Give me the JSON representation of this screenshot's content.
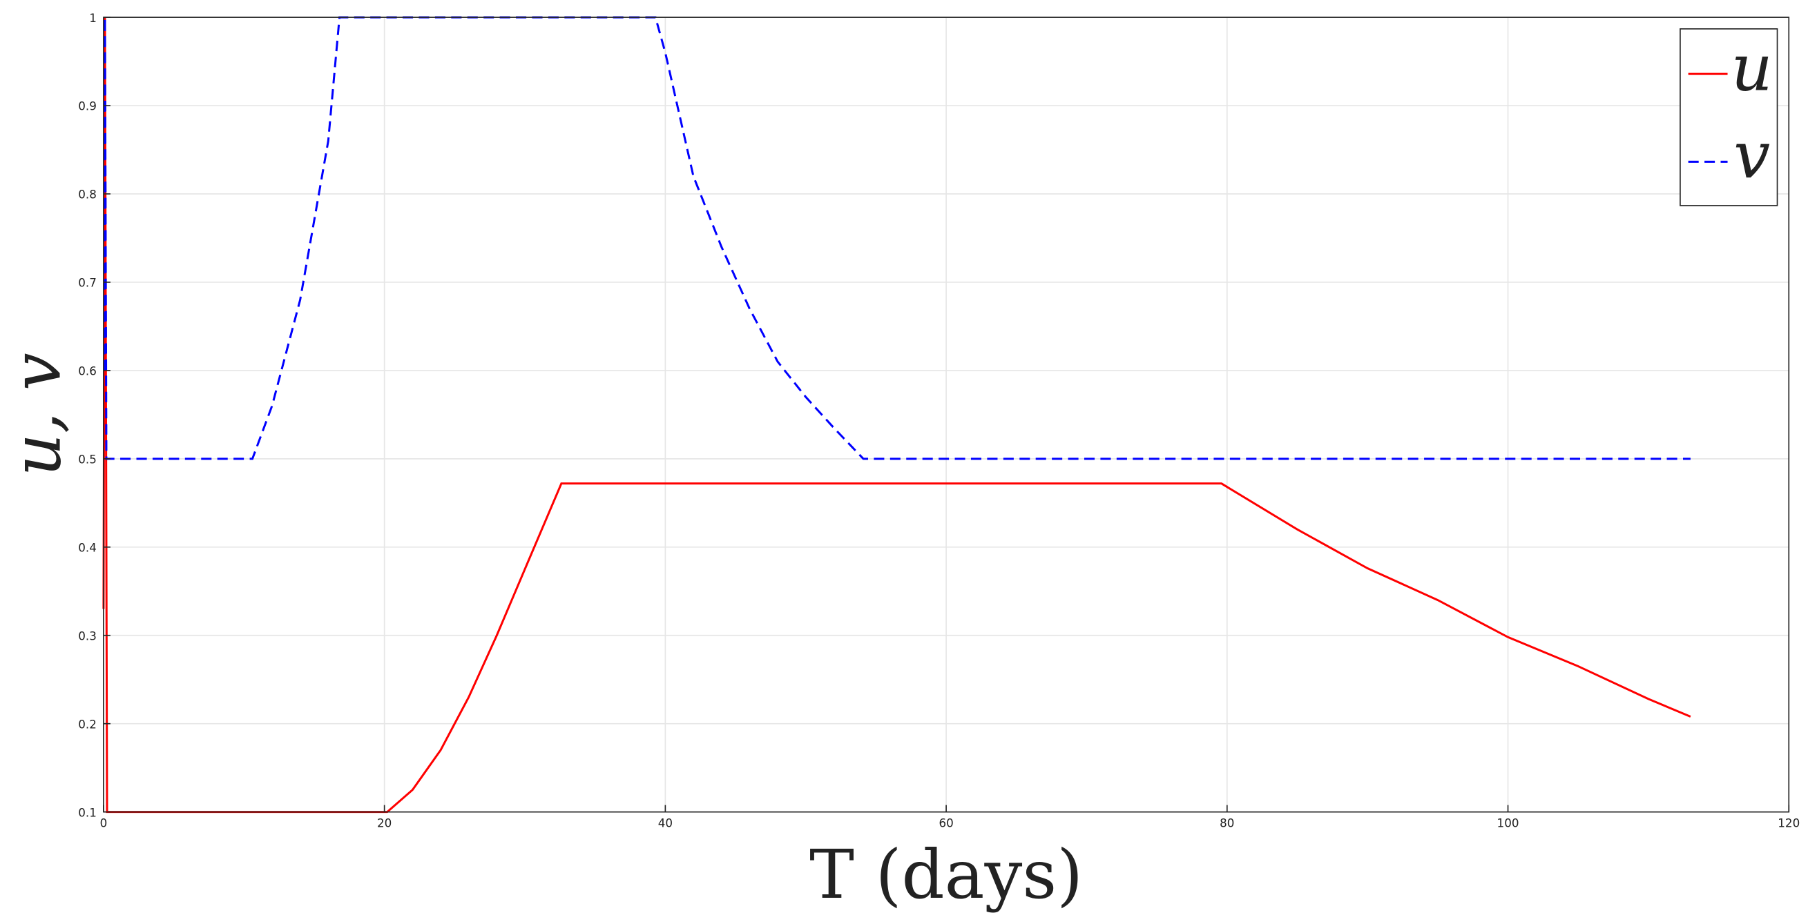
{
  "chart_data": {
    "type": "line",
    "xlabel": "T (days)",
    "ylabel": "u, v",
    "xlim": [
      0,
      120
    ],
    "xticks": [
      0,
      20,
      40,
      60,
      80,
      100,
      120
    ],
    "ylim": [
      0.1,
      1
    ],
    "yticks": [
      0.1,
      0.2,
      0.3,
      0.4,
      0.5,
      0.6,
      0.7,
      0.8,
      0.9,
      1
    ],
    "grid": true,
    "legend": "upper right",
    "series": [
      {
        "name": "u",
        "color": "#ff0000",
        "dash": false,
        "x": [
          0,
          0.1,
          0.25,
          20.2,
          22,
          24,
          26,
          28,
          30,
          32.6,
          79.6,
          85,
          90,
          95,
          100,
          105,
          110,
          113
        ],
        "values": [
          0.33,
          1,
          0.1,
          0.1,
          0.125,
          0.17,
          0.23,
          0.3,
          0.375,
          0.472,
          0.472,
          0.42,
          0.376,
          0.34,
          0.298,
          0.265,
          0.228,
          0.208
        ]
      },
      {
        "name": "v",
        "color": "#0000ff",
        "dash": true,
        "x": [
          0.05,
          0.1,
          0.2,
          10.6,
          12,
          14,
          16,
          16.8,
          39.3,
          40,
          42,
          44,
          46,
          48,
          50,
          52,
          54.1,
          113
        ],
        "values": [
          0.6,
          1,
          0.5,
          0.5,
          0.56,
          0.68,
          0.86,
          1,
          1,
          0.96,
          0.82,
          0.74,
          0.67,
          0.61,
          0.57,
          0.535,
          0.5,
          0.5
        ]
      }
    ]
  }
}
